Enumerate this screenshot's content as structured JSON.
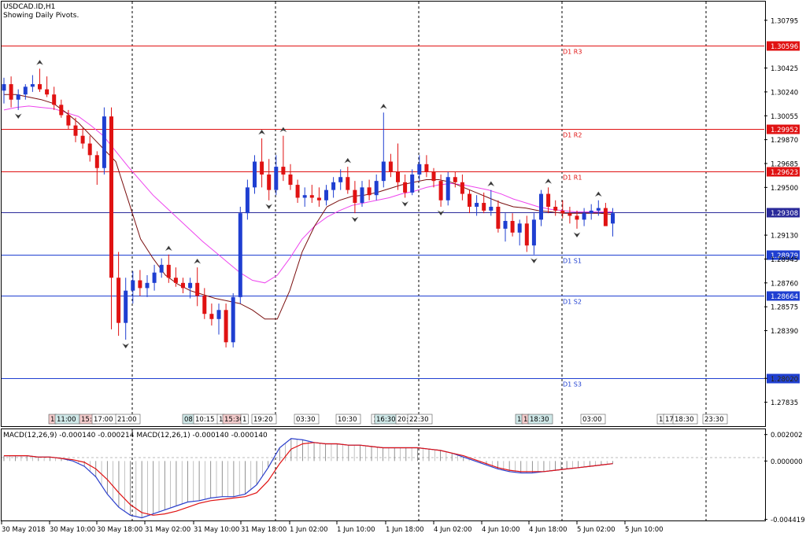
{
  "header": {
    "symbol_line": "USDCAD.ID,H1",
    "pivots_line": "Showing Daily Pivots."
  },
  "colors": {
    "bull": "#1f3fd1",
    "bear": "#e01212",
    "ma_fast": "#7a0f0f",
    "ma_slow": "#ee44ee",
    "resistance_line": "#e01212",
    "support_line": "#1f3fd1",
    "pivot_line": "#2a2a9a",
    "macd_line": "#2b3fcc",
    "signal_line": "#e01212",
    "grid": "#000000"
  },
  "price_axis": {
    "min": 1.2765,
    "max": 1.3094,
    "ticks": [
      "1.30795",
      "1.30425",
      "1.30240",
      "1.30055",
      "1.29870",
      "1.29685",
      "1.29500",
      "1.29130",
      "1.28945",
      "1.28760",
      "1.28575",
      "1.28390",
      "1.28020",
      "1.27835"
    ]
  },
  "pivot_levels": [
    {
      "name": "D1 R3",
      "value": 1.30596,
      "label": "1.30596",
      "kind": "resistance"
    },
    {
      "name": "D1 R2",
      "value": 1.29952,
      "label": "1.29952",
      "kind": "resistance"
    },
    {
      "name": "D1 R1",
      "value": 1.29623,
      "label": "1.29623",
      "kind": "resistance"
    },
    {
      "name": "",
      "value": 1.29308,
      "label": "1.29308",
      "kind": "pivot"
    },
    {
      "name": "D1 S1",
      "value": 1.28979,
      "label": "1.28979",
      "kind": "support"
    },
    {
      "name": "D1 S2",
      "value": 1.28664,
      "label": "1.28664",
      "kind": "support"
    },
    {
      "name": "D1 S3",
      "value": 1.2802,
      "label": "1.28020",
      "kind": "support"
    }
  ],
  "session_labels": [
    {
      "text": "1",
      "bg": "#f4cccc"
    },
    {
      "text": "11:00",
      "bg": "#cfe8e8"
    },
    {
      "text": "15:",
      "bg": "#f4cccc"
    },
    {
      "text": "17:00",
      "bg": "#ffffff"
    },
    {
      "text": "21:00",
      "bg": "#ffffff"
    },
    {
      "text": "08:",
      "bg": "#cfe8e8"
    },
    {
      "text": "10:15",
      "bg": "#ffffff"
    },
    {
      "text": "1",
      "bg": "#ffffff"
    },
    {
      "text": "15:30",
      "bg": "#f4cccc"
    },
    {
      "text": "1",
      "bg": "#ffffff"
    },
    {
      "text": "19:20",
      "bg": "#ffffff"
    },
    {
      "text": "03:30",
      "bg": "#ffffff"
    },
    {
      "text": "10:30",
      "bg": "#ffffff"
    },
    {
      "text": "1",
      "bg": "#ffffff"
    },
    {
      "text": "16:30",
      "bg": "#cfe8e8"
    },
    {
      "text": "20:",
      "bg": "#ffffff"
    },
    {
      "text": "22:30",
      "bg": "#ffffff"
    },
    {
      "text": "1",
      "bg": "#cfe8e8"
    },
    {
      "text": "1",
      "bg": "#f4cccc"
    },
    {
      "text": "18:30",
      "bg": "#cfe8e8"
    },
    {
      "text": "03:00",
      "bg": "#ffffff"
    },
    {
      "text": "1",
      "bg": "#ffffff"
    },
    {
      "text": "17",
      "bg": "#ffffff"
    },
    {
      "text": "18:30",
      "bg": "#ffffff"
    },
    {
      "text": "23:30",
      "bg": "#ffffff"
    }
  ],
  "macd": {
    "title": "MACD(12,26,9) -0.000140 -0.000214 MACD(12,26,1) -0.000140 -0.000140",
    "axis_min": -0.0045,
    "axis_max": 0.0024,
    "ticks": [
      "0.002002",
      "0.000000",
      "-0.004419"
    ],
    "histogram": [
      0.0004,
      0.0004,
      0.0004,
      0.0003,
      0.0003,
      0.0002,
      0.0,
      -0.0004,
      -0.0012,
      -0.0025,
      -0.0035,
      -0.0041,
      -0.0043,
      -0.004,
      -0.0037,
      -0.0034,
      -0.0031,
      -0.003,
      -0.0028,
      -0.0027,
      -0.0027,
      -0.0025,
      -0.0018,
      -0.0005,
      0.001,
      0.0017,
      0.0016,
      0.0014,
      0.0013,
      0.0013,
      0.0012,
      0.0012,
      0.0011,
      0.001,
      0.001,
      0.001,
      0.001,
      0.0009,
      0.0008,
      0.0006,
      0.0003,
      0.0,
      -0.0003,
      -0.0006,
      -0.0008,
      -0.0009,
      -0.0009,
      -0.0008,
      -0.0007,
      -0.0006,
      -0.0005,
      -0.0004,
      -0.0003,
      -0.0002
    ],
    "signal": [
      0.0004,
      0.0004,
      0.0004,
      0.0003,
      0.0003,
      0.0002,
      0.0001,
      -0.0001,
      -0.0006,
      -0.0014,
      -0.0024,
      -0.0033,
      -0.0039,
      -0.0041,
      -0.004,
      -0.0038,
      -0.0035,
      -0.0032,
      -0.003,
      -0.0029,
      -0.0028,
      -0.0027,
      -0.0024,
      -0.0015,
      -0.0002,
      0.0009,
      0.0013,
      0.0014,
      0.0013,
      0.0013,
      0.0012,
      0.0012,
      0.0011,
      0.001,
      0.001,
      0.001,
      0.001,
      0.0009,
      0.0008,
      0.0006,
      0.0004,
      0.0001,
      -0.0002,
      -0.0005,
      -0.0007,
      -0.0008,
      -0.0008,
      -0.0008,
      -0.0007,
      -0.0006,
      -0.0005,
      -0.0004,
      -0.0003,
      -0.0002
    ]
  },
  "chart_data": {
    "type": "candlestick",
    "symbol": "USDCAD.ID",
    "timeframe": "H1",
    "x_labels": [
      "30 May 2018",
      "30 May 10:00",
      "30 May 18:00",
      "31 May 02:00",
      "31 May 10:00",
      "31 May 18:00",
      "1 Jun 02:00",
      "1 Jun 10:00",
      "1 Jun 18:00",
      "4 Jun 02:00",
      "4 Jun 10:00",
      "4 Jun 18:00",
      "5 Jun 02:00",
      "5 Jun 10:00"
    ],
    "ylim": [
      1.2765,
      1.3094
    ],
    "candles": [
      [
        1.3025,
        1.3035,
        1.3015,
        1.303
      ],
      [
        1.303,
        1.3036,
        1.3012,
        1.3018
      ],
      [
        1.3018,
        1.3026,
        1.301,
        1.3022
      ],
      [
        1.3022,
        1.303,
        1.3018,
        1.3028
      ],
      [
        1.3028,
        1.3037,
        1.3024,
        1.303
      ],
      [
        1.303,
        1.3042,
        1.3024,
        1.3026
      ],
      [
        1.3026,
        1.3036,
        1.302,
        1.3022
      ],
      [
        1.3022,
        1.3028,
        1.301,
        1.3014
      ],
      [
        1.3014,
        1.3018,
        1.3004,
        1.3006
      ],
      [
        1.3006,
        1.301,
        1.2995,
        1.2998
      ],
      [
        1.2998,
        1.3004,
        1.2985,
        1.299
      ],
      [
        1.299,
        1.2996,
        1.298,
        1.2984
      ],
      [
        1.2984,
        1.299,
        1.297,
        1.2975
      ],
      [
        1.2975,
        1.2978,
        1.2952,
        1.2965
      ],
      [
        1.2965,
        1.3012,
        1.296,
        1.3005
      ],
      [
        1.3005,
        1.3012,
        1.284,
        1.288
      ],
      [
        1.288,
        1.29,
        1.2835,
        1.2845
      ],
      [
        1.2845,
        1.288,
        1.2832,
        1.287
      ],
      [
        1.287,
        1.2885,
        1.286,
        1.2878
      ],
      [
        1.2878,
        1.2886,
        1.2866,
        1.2872
      ],
      [
        1.2872,
        1.2882,
        1.2865,
        1.2876
      ],
      [
        1.2876,
        1.289,
        1.287,
        1.2884
      ],
      [
        1.2884,
        1.2895,
        1.288,
        1.289
      ],
      [
        1.289,
        1.2898,
        1.2876,
        1.288
      ],
      [
        1.288,
        1.2888,
        1.2873,
        1.2876
      ],
      [
        1.2876,
        1.288,
        1.2868,
        1.2872
      ],
      [
        1.2872,
        1.288,
        1.2864,
        1.2876
      ],
      [
        1.2876,
        1.2888,
        1.2858,
        1.2866
      ],
      [
        1.2866,
        1.2872,
        1.2848,
        1.2852
      ],
      [
        1.2852,
        1.286,
        1.2843,
        1.2848
      ],
      [
        1.2848,
        1.286,
        1.2836,
        1.2855
      ],
      [
        1.2855,
        1.286,
        1.2826,
        1.283
      ],
      [
        1.283,
        1.2868,
        1.2826,
        1.2865
      ],
      [
        1.2865,
        1.2935,
        1.286,
        1.293
      ],
      [
        1.293,
        1.2956,
        1.2925,
        1.295
      ],
      [
        1.295,
        1.2975,
        1.2945,
        1.297
      ],
      [
        1.297,
        1.2988,
        1.295,
        1.296
      ],
      [
        1.296,
        1.2972,
        1.294,
        1.2948
      ],
      [
        1.2948,
        1.2975,
        1.2944,
        1.2966
      ],
      [
        1.2966,
        1.299,
        1.2955,
        1.296
      ],
      [
        1.296,
        1.2968,
        1.2948,
        1.2952
      ],
      [
        1.2952,
        1.2956,
        1.2938,
        1.2942
      ],
      [
        1.2942,
        1.295,
        1.2935,
        1.2944
      ],
      [
        1.2944,
        1.2952,
        1.2938,
        1.2942
      ],
      [
        1.2942,
        1.295,
        1.2935,
        1.294
      ],
      [
        1.294,
        1.2952,
        1.2936,
        1.2948
      ],
      [
        1.2948,
        1.2958,
        1.2942,
        1.2954
      ],
      [
        1.2954,
        1.2964,
        1.2948,
        1.2958
      ],
      [
        1.2958,
        1.2966,
        1.2945,
        1.2948
      ],
      [
        1.2948,
        1.2955,
        1.293,
        1.2938
      ],
      [
        1.2938,
        1.2955,
        1.2935,
        1.295
      ],
      [
        1.295,
        1.2956,
        1.294,
        1.2944
      ],
      [
        1.2944,
        1.296,
        1.294,
        1.2955
      ],
      [
        1.2955,
        1.3008,
        1.295,
        1.297
      ],
      [
        1.297,
        1.2976,
        1.2958,
        1.2962
      ],
      [
        1.2962,
        1.2984,
        1.2948,
        1.2954
      ],
      [
        1.2954,
        1.296,
        1.2942,
        1.2946
      ],
      [
        1.2946,
        1.2964,
        1.2944,
        1.296
      ],
      [
        1.296,
        1.2975,
        1.2955,
        1.2968
      ],
      [
        1.2968,
        1.2975,
        1.2958,
        1.2962
      ],
      [
        1.2962,
        1.2965,
        1.295,
        1.2955
      ],
      [
        1.2955,
        1.296,
        1.2935,
        1.294
      ],
      [
        1.294,
        1.2962,
        1.2936,
        1.2958
      ],
      [
        1.2958,
        1.2962,
        1.295,
        1.2954
      ],
      [
        1.2954,
        1.296,
        1.294,
        1.2945
      ],
      [
        1.2945,
        1.2948,
        1.293,
        1.2935
      ],
      [
        1.2935,
        1.2944,
        1.2928,
        1.2938
      ],
      [
        1.2938,
        1.2946,
        1.293,
        1.2932
      ],
      [
        1.2932,
        1.2948,
        1.2928,
        1.2935
      ],
      [
        1.2935,
        1.294,
        1.2915,
        1.2918
      ],
      [
        1.2918,
        1.293,
        1.2908,
        1.2924
      ],
      [
        1.2924,
        1.293,
        1.2912,
        1.2915
      ],
      [
        1.2915,
        1.2925,
        1.2905,
        1.2922
      ],
      [
        1.2922,
        1.2928,
        1.29,
        1.2905
      ],
      [
        1.2905,
        1.293,
        1.2898,
        1.2925
      ],
      [
        1.2925,
        1.2948,
        1.292,
        1.2945
      ],
      [
        1.2945,
        1.295,
        1.293,
        1.2935
      ],
      [
        1.2935,
        1.294,
        1.2928,
        1.2932
      ],
      [
        1.2932,
        1.294,
        1.2926,
        1.293
      ],
      [
        1.293,
        1.2935,
        1.2922,
        1.2928
      ],
      [
        1.2928,
        1.2932,
        1.2918,
        1.2925
      ],
      [
        1.2925,
        1.2934,
        1.292,
        1.293
      ],
      [
        1.293,
        1.2937,
        1.2925,
        1.2932
      ],
      [
        1.2932,
        1.294,
        1.2928,
        1.2934
      ],
      [
        1.2934,
        1.2938,
        1.2922,
        1.292
      ],
      [
        1.2922,
        1.2934,
        1.2912,
        1.293
      ]
    ]
  },
  "moving_averages": {
    "fast": [
      1.3022,
      1.3022,
      1.302,
      1.3018,
      1.3015,
      1.3008,
      1.3,
      1.299,
      1.298,
      1.297,
      1.294,
      1.291,
      1.2895,
      1.2882,
      1.2875,
      1.287,
      1.2867,
      1.2864,
      1.2862,
      1.286,
      1.2855,
      1.2848,
      1.2848,
      1.287,
      1.29,
      1.292,
      1.2935,
      1.294,
      1.2943,
      1.2944,
      1.2946,
      1.2949,
      1.2952,
      1.2954,
      1.2956,
      1.2956,
      1.2954,
      1.295,
      1.2946,
      1.2942,
      1.2938,
      1.2935,
      1.2934,
      1.2932,
      1.2931,
      1.293,
      1.293,
      1.293,
      1.293,
      1.2929
    ],
    "slow": [
      1.301,
      1.3012,
      1.3013,
      1.3012,
      1.3011,
      1.3008,
      1.3005,
      1.2998,
      1.299,
      1.2978,
      1.2966,
      1.2955,
      1.2944,
      1.2935,
      1.2926,
      1.2917,
      1.2908,
      1.29,
      1.2892,
      1.2884,
      1.2878,
      1.2876,
      1.2882,
      1.2895,
      1.291,
      1.292,
      1.2927,
      1.2932,
      1.2936,
      1.2938,
      1.294,
      1.2942,
      1.2945,
      1.2947,
      1.295,
      1.2952,
      1.2953,
      1.2952,
      1.295,
      1.2948,
      1.2945,
      1.2941,
      1.2938,
      1.2935,
      1.2933,
      1.2932,
      1.2931,
      1.2931,
      1.2931,
      1.2931
    ]
  }
}
